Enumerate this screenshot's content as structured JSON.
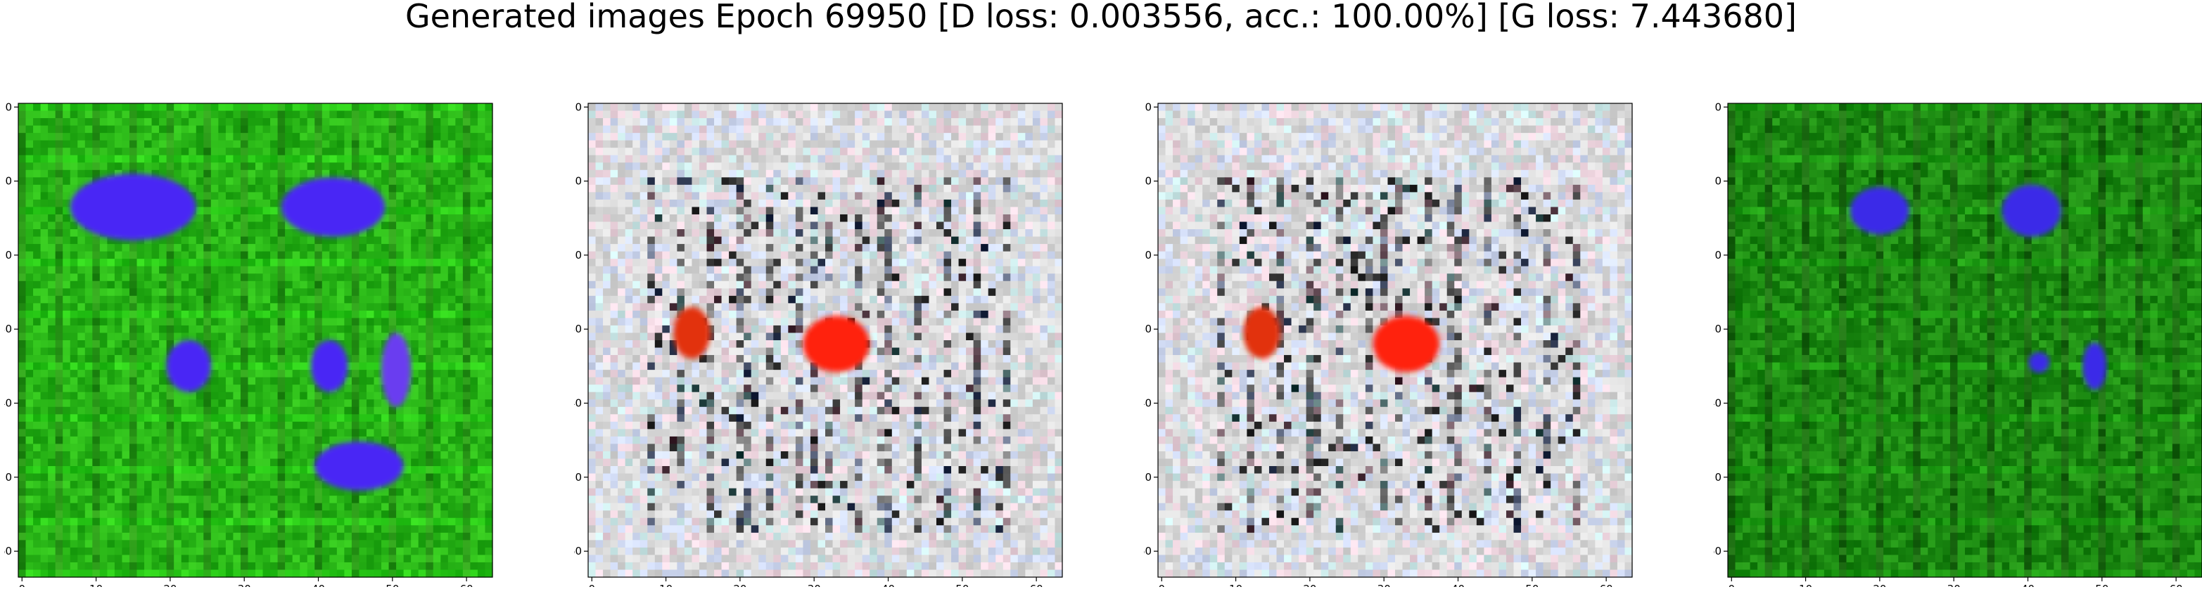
{
  "figure": {
    "title": "Generated images Epoch 69950 [D loss: 0.003556, acc.: 100.00%] [G loss: 7.443680]"
  },
  "axes_ticks": {
    "x": [
      "0",
      "10",
      "20",
      "30",
      "40",
      "50",
      "60"
    ],
    "y": [
      "0",
      "10",
      "20",
      "30",
      "40",
      "50",
      "60"
    ],
    "tick_values": [
      0,
      10,
      20,
      30,
      40,
      50,
      60
    ],
    "xlim": [
      -0.5,
      63.5
    ],
    "ylim": [
      63.5,
      -0.5
    ]
  },
  "panels": [
    {
      "name": "generated-image-1",
      "theme": "green",
      "blobs": [
        {
          "cx": 15,
          "cy": 13.5,
          "rx": 8.5,
          "ry": 4.5,
          "color": "#4a25f5"
        },
        {
          "cx": 42,
          "cy": 13.5,
          "rx": 7,
          "ry": 4,
          "color": "#4a25f5"
        },
        {
          "cx": 22.5,
          "cy": 35,
          "rx": 3,
          "ry": 3.5,
          "color": "#4a25f5"
        },
        {
          "cx": 41.5,
          "cy": 35,
          "rx": 2.5,
          "ry": 3.5,
          "color": "#4a25f5"
        },
        {
          "cx": 50.5,
          "cy": 35.5,
          "rx": 2,
          "ry": 5,
          "color": "#6a3df0"
        },
        {
          "cx": 45.5,
          "cy": 48.5,
          "rx": 6,
          "ry": 3.3,
          "color": "#4a25f5"
        }
      ]
    },
    {
      "name": "generated-image-2",
      "theme": "gray",
      "blobs": [
        {
          "cx": 13.5,
          "cy": 30.5,
          "rx": 2.5,
          "ry": 3.5,
          "color": "#e23010"
        },
        {
          "cx": 33,
          "cy": 32,
          "rx": 4.5,
          "ry": 3.8,
          "color": "#ff2010"
        }
      ]
    },
    {
      "name": "generated-image-3",
      "theme": "gray",
      "blobs": [
        {
          "cx": 13.5,
          "cy": 30.5,
          "rx": 2.5,
          "ry": 3.5,
          "color": "#e23010"
        },
        {
          "cx": 33,
          "cy": 32,
          "rx": 4.5,
          "ry": 3.8,
          "color": "#ff2010"
        }
      ]
    },
    {
      "name": "generated-image-4",
      "theme": "darkgreen",
      "blobs": [
        {
          "cx": 20,
          "cy": 14,
          "rx": 4,
          "ry": 3.2,
          "color": "#3a2ae8"
        },
        {
          "cx": 40.5,
          "cy": 14,
          "rx": 4,
          "ry": 3.5,
          "color": "#3a2ae8"
        },
        {
          "cx": 41.5,
          "cy": 34.5,
          "rx": 1.4,
          "ry": 1.4,
          "color": "#3a2ae8"
        },
        {
          "cx": 49,
          "cy": 35,
          "rx": 1.6,
          "ry": 3.2,
          "color": "#3a2ae8"
        }
      ]
    }
  ]
}
